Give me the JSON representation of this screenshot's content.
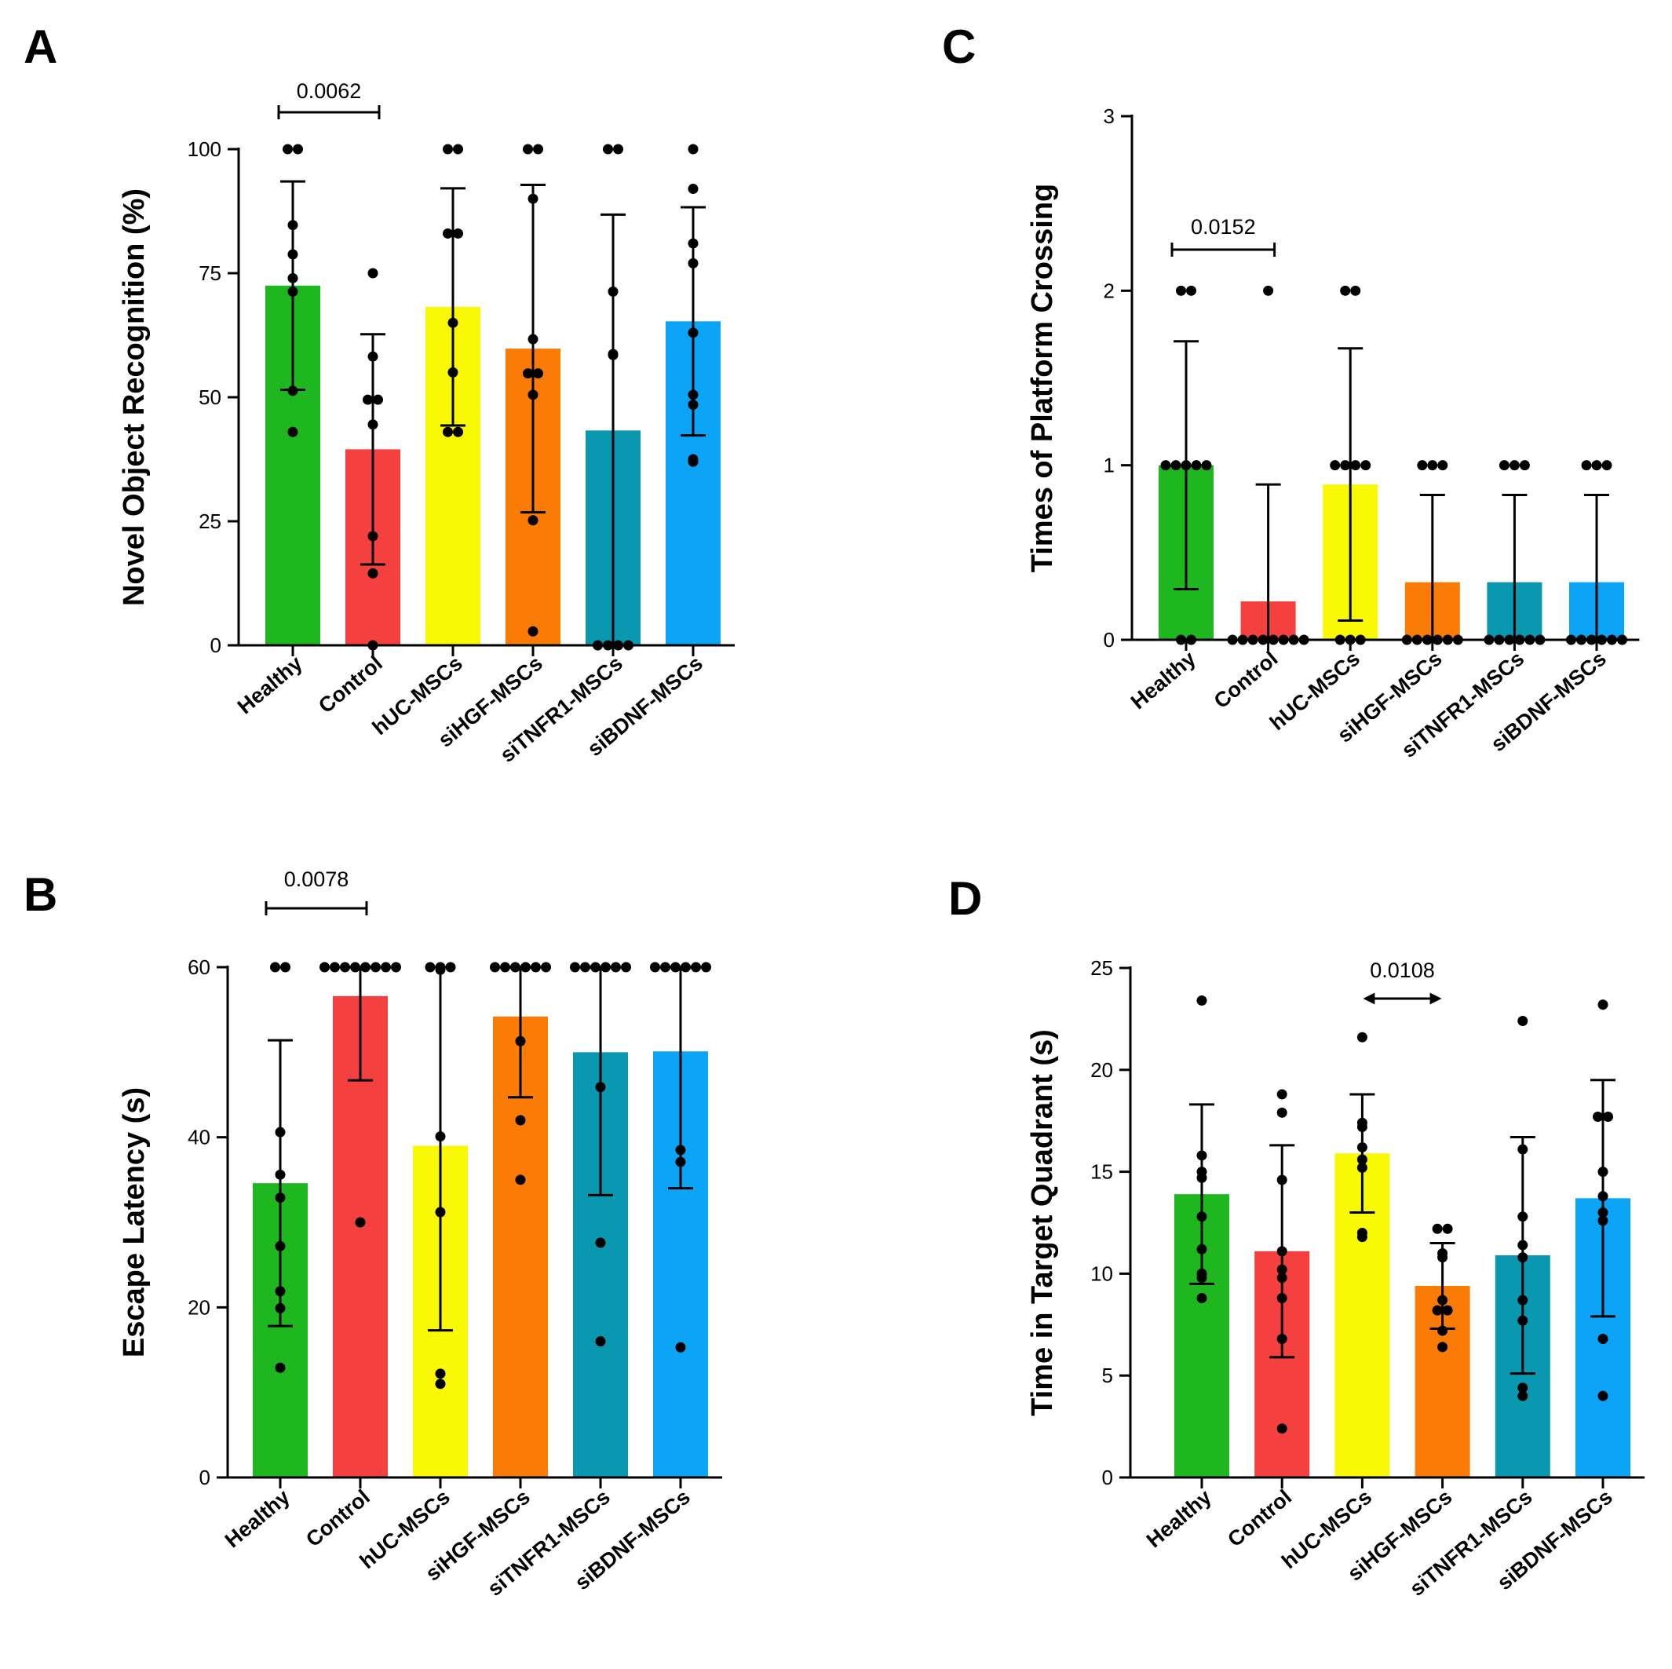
{
  "chart_data": [
    {
      "type": "bar",
      "panel": "A",
      "title": "",
      "xlabel": "",
      "ylabel": "Novel Object Recognition (%)",
      "ylim": [
        0,
        100
      ],
      "yticks": [
        0,
        25,
        50,
        75,
        100
      ],
      "categories": [
        "Healthy",
        "Control",
        "hUC-MSCs",
        "siHGF-MSCs",
        "siTNFR1-MSCs",
        "siBDNF-MSCs"
      ],
      "colors": [
        "#1fb71f",
        "#f54040",
        "#f9f905",
        "#fa7b05",
        "#0a97b0",
        "#0ba4f7"
      ],
      "values": [
        72.5,
        39.5,
        68.2,
        59.8,
        43.3,
        65.3
      ],
      "sd": [
        21.0,
        23.2,
        23.9,
        33.0,
        43.5,
        23.0
      ],
      "points": [
        [
          100,
          100,
          84.7,
          78.8,
          74.0,
          71.3,
          51.3,
          43.0
        ],
        [
          75.0,
          58.2,
          49.5,
          49.5,
          44.5,
          22.0,
          14.5,
          0.0
        ],
        [
          100,
          100,
          83.0,
          83.0,
          65.0,
          55.0,
          43.0,
          43.0
        ],
        [
          100,
          100,
          90.0,
          61.7,
          54.8,
          54.8,
          50.5,
          25.2,
          2.8
        ],
        [
          100,
          100,
          71.3,
          58.7,
          58.5,
          0,
          0,
          0,
          0
        ],
        [
          100,
          92.0,
          81.0,
          77.0,
          63.0,
          50.5,
          48.5,
          37.5,
          37.0
        ]
      ],
      "significance": [
        {
          "from": "Healthy",
          "to": "Control",
          "label": "0.0062"
        }
      ]
    },
    {
      "type": "bar",
      "panel": "B",
      "title": "",
      "xlabel": "",
      "ylabel": "Escape Latency (s)",
      "ylim": [
        0,
        60
      ],
      "yticks": [
        0,
        20,
        40,
        60
      ],
      "categories": [
        "Healthy",
        "Control",
        "hUC-MSCs",
        "siHGF-MSCs",
        "siTNFR1-MSCs",
        "siBDNF-MSCs"
      ],
      "colors": [
        "#1fb71f",
        "#f54040",
        "#f9f905",
        "#fa7b05",
        "#0a97b0",
        "#0ba4f7"
      ],
      "values": [
        34.6,
        56.6,
        39.0,
        54.2,
        50.0,
        50.1
      ],
      "sd": [
        16.8,
        9.9,
        21.7,
        9.5,
        16.8,
        16.1
      ],
      "points": [
        [
          60,
          60,
          40.6,
          35.6,
          32.9,
          27.2,
          21.9,
          19.9,
          12.9
        ],
        [
          60,
          60,
          60,
          60,
          60,
          60,
          60,
          60,
          30.0
        ],
        [
          60,
          60,
          60,
          59.7,
          40.1,
          31.2,
          12.2,
          11.0
        ],
        [
          60,
          60,
          60,
          60,
          60,
          60,
          51.3,
          42.0,
          35.0
        ],
        [
          60,
          60,
          60,
          60,
          60,
          60,
          45.9,
          27.6,
          16.0
        ],
        [
          60,
          60,
          60,
          60,
          60,
          60,
          38.5,
          37.1,
          15.3
        ]
      ],
      "significance": [
        {
          "from": "Healthy",
          "to": "Control",
          "label": "0.0078"
        }
      ]
    },
    {
      "type": "bar",
      "panel": "C",
      "title": "",
      "xlabel": "",
      "ylabel": "Times of Platform Crossing",
      "ylim": [
        0,
        3
      ],
      "yticks": [
        0,
        1,
        2,
        3
      ],
      "categories": [
        "Healthy",
        "Control",
        "hUC-MSCs",
        "siHGF-MSCs",
        "siTNFR1-MSCs",
        "siBDNF-MSCs"
      ],
      "colors": [
        "#1fb71f",
        "#f54040",
        "#f9f905",
        "#fa7b05",
        "#0a97b0",
        "#0ba4f7"
      ],
      "values": [
        1.0,
        0.22,
        0.89,
        0.33,
        0.33,
        0.33
      ],
      "sd": [
        0.71,
        0.67,
        0.78,
        0.5,
        0.5,
        0.5
      ],
      "points": [
        [
          2,
          2,
          1,
          1,
          1,
          1,
          1,
          0,
          0
        ],
        [
          2,
          0,
          0,
          0,
          0,
          0,
          0,
          0,
          0
        ],
        [
          2,
          2,
          1,
          1,
          1,
          1,
          0,
          0,
          0
        ],
        [
          1,
          1,
          1,
          0,
          0,
          0,
          0,
          0,
          0
        ],
        [
          1,
          1,
          1,
          0,
          0,
          0,
          0,
          0,
          0
        ],
        [
          1,
          1,
          1,
          0,
          0,
          0,
          0,
          0,
          0
        ]
      ],
      "significance": [
        {
          "from": "Healthy",
          "to": "Control",
          "label": "0.0152"
        }
      ]
    },
    {
      "type": "bar",
      "panel": "D",
      "title": "",
      "xlabel": "",
      "ylabel": "Time in Target Quadrant (s)",
      "ylim": [
        0,
        25
      ],
      "yticks": [
        0,
        5,
        10,
        15,
        20,
        25
      ],
      "categories": [
        "Healthy",
        "Control",
        "hUC-MSCs",
        "siHGF-MSCs",
        "siTNFR1-MSCs",
        "siBDNF-MSCs"
      ],
      "colors": [
        "#1fb71f",
        "#f54040",
        "#f9f905",
        "#fa7b05",
        "#0a97b0",
        "#0ba4f7"
      ],
      "values": [
        13.9,
        11.1,
        15.9,
        9.4,
        10.9,
        13.7
      ],
      "sd": [
        4.4,
        5.2,
        2.9,
        2.1,
        5.8,
        5.8
      ],
      "points": [
        [
          23.4,
          15.8,
          15.0,
          14.7,
          12.8,
          11.2,
          10.0,
          9.8,
          8.8
        ],
        [
          18.8,
          17.9,
          14.6,
          11.1,
          10.2,
          9.8,
          8.8,
          6.8,
          2.4
        ],
        [
          21.6,
          17.4,
          17.2,
          16.2,
          15.6,
          15.2,
          12.0,
          11.8
        ],
        [
          12.2,
          12.2,
          11.0,
          10.8,
          8.7,
          8.2,
          8.2,
          7.2,
          6.4
        ],
        [
          22.4,
          16.1,
          12.8,
          11.4,
          10.8,
          8.7,
          7.7,
          4.4,
          4.0
        ],
        [
          23.2,
          17.7,
          17.7,
          15.0,
          13.8,
          13.0,
          12.6,
          6.8,
          4.0
        ]
      ],
      "significance": [
        {
          "from": "hUC-MSCs",
          "to": "siHGF-MSCs",
          "label": "0.0108",
          "style": "arrow"
        }
      ]
    }
  ]
}
